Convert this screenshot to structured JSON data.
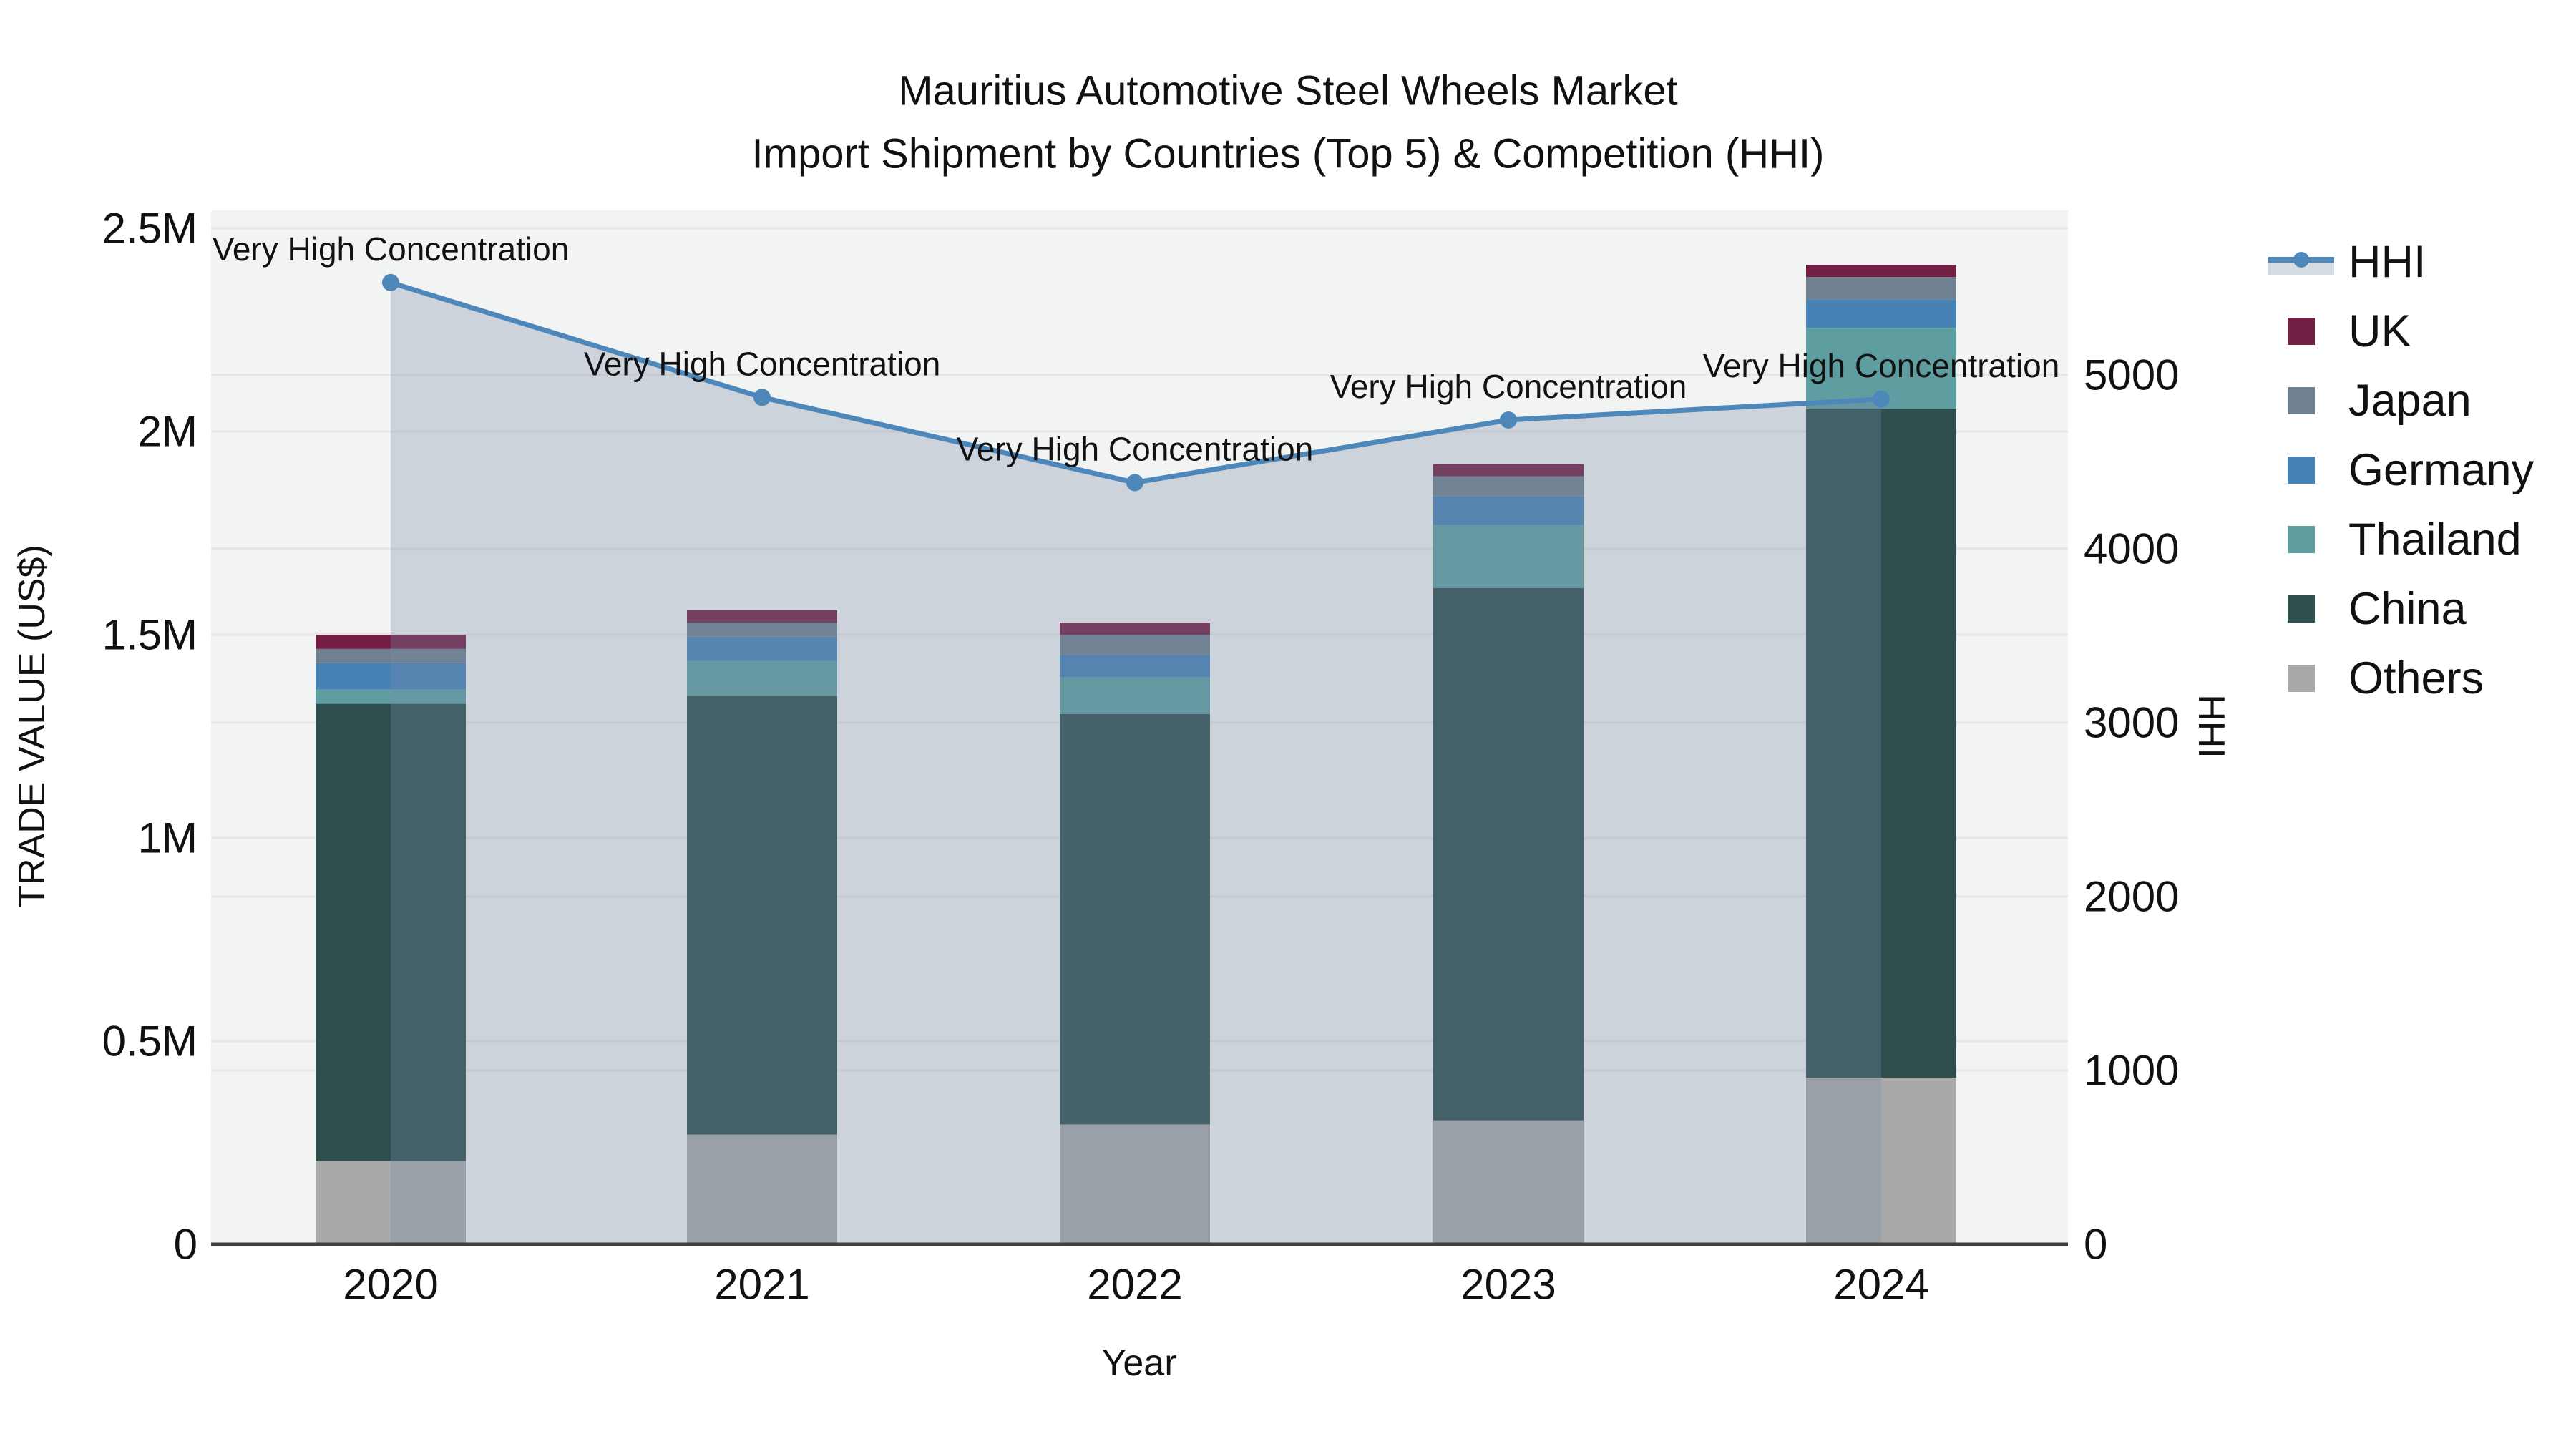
{
  "title": {
    "line1": "Mauritius Automotive Steel Wheels Market",
    "line2": "Import Shipment by Countries (Top 5) & Competition (HHI)"
  },
  "annotation": {
    "text": "Very High Concentration"
  },
  "axes": {
    "x": {
      "title": "Year",
      "tick_labels": [
        "2020",
        "2021",
        "2022",
        "2023",
        "2024"
      ]
    },
    "y_left": {
      "title": "TRADE VALUE (US$)",
      "tick_labels": [
        "0",
        "0.5M",
        "1M",
        "1.5M",
        "2M",
        "2.5M"
      ],
      "tick_values_musd": [
        0,
        0.5,
        1,
        1.5,
        2,
        2.5
      ]
    },
    "y_right": {
      "title": "HHI",
      "tick_labels": [
        "0",
        "1000",
        "2000",
        "3000",
        "4000",
        "5000"
      ],
      "tick_values": [
        0,
        1000,
        2000,
        3000,
        4000,
        5000
      ]
    }
  },
  "legend": {
    "items": [
      {
        "label": "HHI",
        "type": "line",
        "color": "#4e87b9"
      },
      {
        "label": "UK",
        "type": "swatch",
        "color": "#741f44"
      },
      {
        "label": "Japan",
        "type": "swatch",
        "color": "#708090"
      },
      {
        "label": "Germany",
        "type": "swatch",
        "color": "#4682b4"
      },
      {
        "label": "Thailand",
        "type": "swatch",
        "color": "#5f9ea0"
      },
      {
        "label": "China",
        "type": "swatch",
        "color": "#2f4f4f"
      },
      {
        "label": "Others",
        "type": "swatch",
        "color": "#a9a9a9"
      }
    ]
  },
  "chart_data": {
    "type": "bar",
    "subtype": "stacked-bars-with-line",
    "title": "Mauritius Automotive Steel Wheels Market — Import Shipment by Countries (Top 5) & Competition (HHI)",
    "xlabel": "Year",
    "ylabel_left": "TRADE VALUE (US$)",
    "ylabel_right": "HHI",
    "categories": [
      "2020",
      "2021",
      "2022",
      "2023",
      "2024"
    ],
    "stack_order_bottom_to_top": [
      "Others",
      "China",
      "Thailand",
      "Germany",
      "Japan",
      "UK"
    ],
    "series": [
      {
        "name": "Others",
        "unit": "million US$",
        "values": [
          0.205,
          0.27,
          0.295,
          0.305,
          0.41
        ]
      },
      {
        "name": "China",
        "unit": "million US$",
        "values": [
          1.125,
          1.08,
          1.01,
          1.31,
          1.645
        ]
      },
      {
        "name": "Thailand",
        "unit": "million US$",
        "values": [
          0.035,
          0.085,
          0.09,
          0.155,
          0.2
        ]
      },
      {
        "name": "Germany",
        "unit": "million US$",
        "values": [
          0.065,
          0.06,
          0.055,
          0.07,
          0.07
        ]
      },
      {
        "name": "Japan",
        "unit": "million US$",
        "values": [
          0.035,
          0.035,
          0.05,
          0.05,
          0.055
        ]
      },
      {
        "name": "UK",
        "unit": "million US$",
        "values": [
          0.035,
          0.03,
          0.03,
          0.03,
          0.03
        ]
      }
    ],
    "bar_totals_musd": [
      1.5,
      1.56,
      1.53,
      1.92,
      2.41
    ],
    "line_series": {
      "name": "HHI",
      "values": [
        5530,
        4870,
        4380,
        4740,
        4860
      ],
      "annotations": [
        "Very High Concentration",
        "Very High Concentration",
        "Very High Concentration",
        "Very High Concentration",
        "Very High Concentration"
      ]
    },
    "ylim_left_musd": [
      0,
      2.5
    ],
    "ylim_right": [
      0,
      5944
    ],
    "grid": true,
    "legend_position": "right-top-outside"
  },
  "colors": {
    "paper_bg": "#ffffff",
    "plot_bg": "#f2f3f3",
    "grid": "#e4e6e6",
    "axis_line": "#3f3f3f",
    "text": "#111111",
    "hhi_line": "#4e87b9",
    "hhi_fill": "rgba(120,140,165,0.30)",
    "UK": "#741f44",
    "Japan": "#708090",
    "Germany": "#4682b4",
    "Thailand": "#5f9ea0",
    "China": "#2f4f4f",
    "Others": "#a9a9a9"
  }
}
